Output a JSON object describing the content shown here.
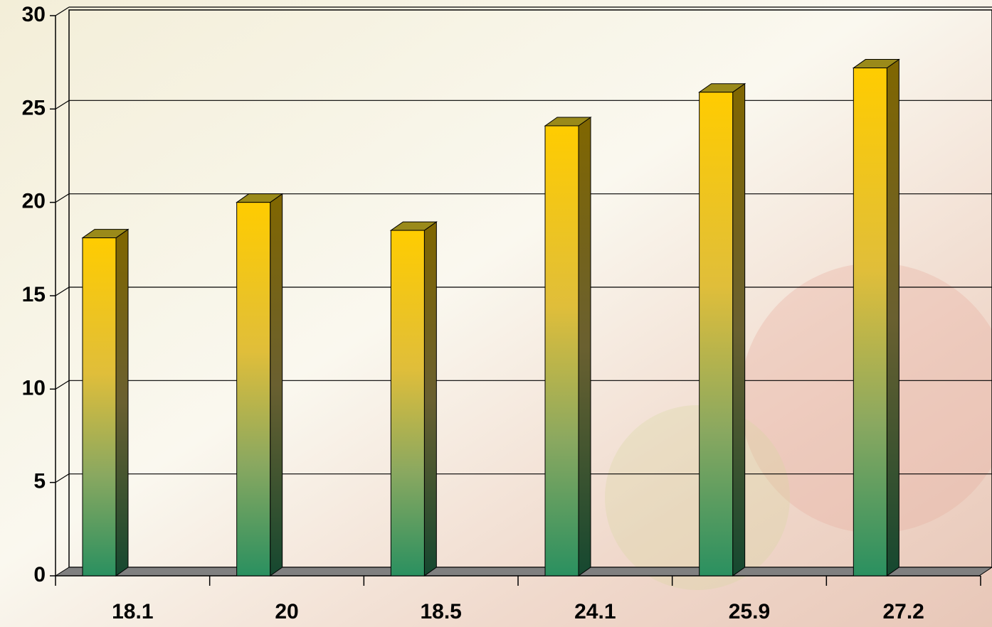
{
  "chart_data": {
    "type": "bar3d",
    "categories": [
      "18.1",
      "20",
      "18.5",
      "24.1",
      "25.9",
      "27.2"
    ],
    "values": [
      18.1,
      20,
      18.5,
      24.1,
      25.9,
      27.2
    ],
    "ylim": [
      0,
      30
    ],
    "yticks": [
      0,
      5,
      10,
      15,
      20,
      25,
      30
    ],
    "grid": true
  }
}
